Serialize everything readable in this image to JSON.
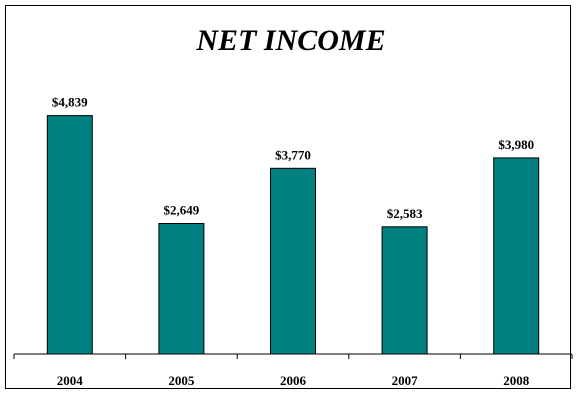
{
  "chart_data": {
    "type": "bar",
    "title": "NET INCOME",
    "xlabel": "",
    "ylabel": "",
    "categories": [
      "2004",
      "2005",
      "2006",
      "2007",
      "2008"
    ],
    "values": [
      4839,
      2649,
      3770,
      2583,
      3980
    ],
    "data_labels": [
      "$4,839",
      "$2,649",
      "$3,770",
      "$2,583",
      "$3,980"
    ],
    "ylim": [
      0,
      5400
    ],
    "grid": false,
    "legend": "none",
    "bar_color": "#008080"
  }
}
